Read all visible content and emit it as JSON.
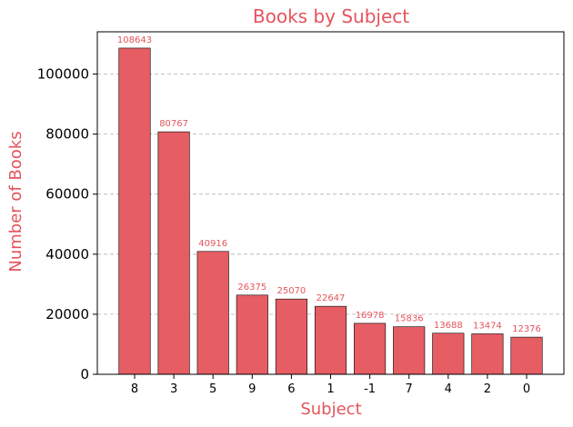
{
  "chart_data": {
    "type": "bar",
    "title": "Books by Subject",
    "xlabel": "Subject",
    "ylabel": "Number of Books",
    "categories": [
      "8",
      "3",
      "5",
      "9",
      "6",
      "1",
      "-1",
      "7",
      "4",
      "2",
      "0"
    ],
    "values": [
      108643,
      80767,
      40916,
      26375,
      25070,
      22647,
      16978,
      15836,
      13688,
      13474,
      12376
    ],
    "ylim": [
      0,
      114075
    ],
    "yticks": [
      0,
      20000,
      40000,
      60000,
      80000,
      100000
    ],
    "grid": "y-dashed",
    "colors": {
      "bar": "#e5545c",
      "bar_edge": "#000000",
      "text_accent": "#e5545c",
      "grid": "#b0b0b0"
    }
  }
}
